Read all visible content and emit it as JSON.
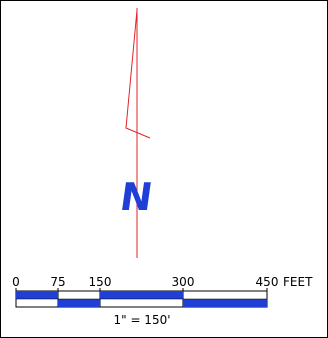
{
  "north_arrow": {
    "letter": "N",
    "letter_color": "#1f3fd6",
    "line_color": "#e0242a"
  },
  "scale_bar": {
    "ticks": [
      "0",
      "75",
      "150",
      "300",
      "450"
    ],
    "tick_values": [
      0,
      75,
      150,
      300,
      450
    ],
    "unit": "FEET",
    "ratio_text": "1\" = 150'",
    "bar_color": "#1f3fd6"
  }
}
